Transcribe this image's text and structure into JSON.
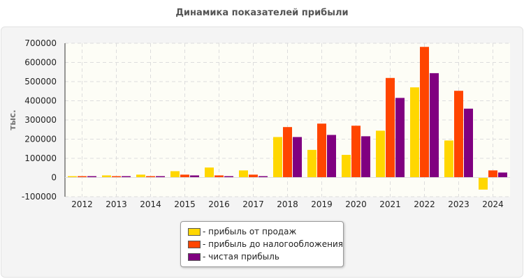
{
  "chart_data": {
    "type": "bar",
    "title": "Динамика показателей прибыли",
    "ylabel": "тыс.",
    "xlabel": "",
    "ylim": [
      -100000,
      700000
    ],
    "yticks": [
      -100000,
      0,
      100000,
      200000,
      300000,
      400000,
      500000,
      600000,
      700000
    ],
    "grid": true,
    "legend_position": "bottom",
    "categories": [
      "2012",
      "2013",
      "2014",
      "2015",
      "2016",
      "2017",
      "2018",
      "2019",
      "2020",
      "2021",
      "2022",
      "2023",
      "2024"
    ],
    "series": [
      {
        "name": "- прибыль от продаж",
        "color": "#FFD700",
        "values": [
          7000,
          11000,
          15000,
          33000,
          52000,
          37000,
          211000,
          144000,
          118000,
          244000,
          470000,
          193000,
          -63000
        ]
      },
      {
        "name": "- прибыль до налогообложения",
        "color": "#FF4500",
        "values": [
          7000,
          7000,
          7000,
          15000,
          11000,
          15000,
          263000,
          281000,
          270000,
          519000,
          681000,
          452000,
          37000
        ]
      },
      {
        "name": "- чистая прибыль",
        "color": "#800080",
        "values": [
          7000,
          7000,
          7000,
          11000,
          7000,
          7000,
          211000,
          222000,
          215000,
          415000,
          544000,
          359000,
          26000
        ]
      }
    ]
  }
}
